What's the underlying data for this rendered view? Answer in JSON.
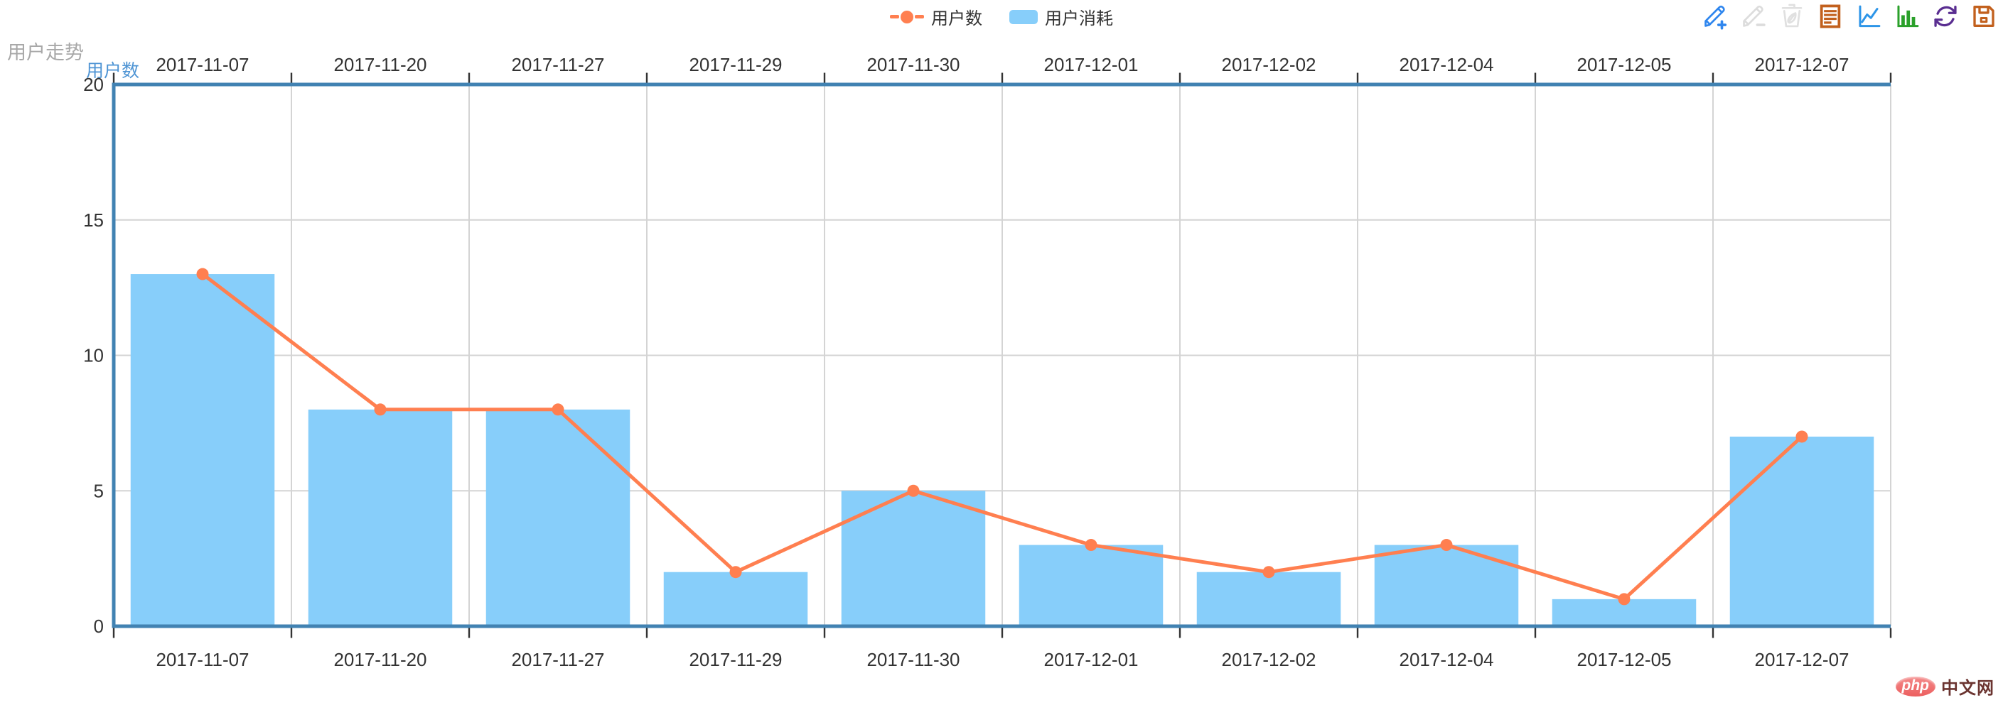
{
  "title": "用户走势",
  "y_axis_name": "用户数",
  "chart_data": {
    "type": "combo",
    "categories": [
      "2017-11-07",
      "2017-11-20",
      "2017-11-27",
      "2017-11-29",
      "2017-11-30",
      "2017-12-01",
      "2017-12-02",
      "2017-12-04",
      "2017-12-05",
      "2017-12-07"
    ],
    "series": [
      {
        "name": "用户数",
        "type": "line",
        "color": "#FF7F50",
        "values": [
          13,
          8,
          8,
          2,
          5,
          3,
          2,
          3,
          1,
          7
        ]
      },
      {
        "name": "用户消耗",
        "type": "bar",
        "color": "#87CEFA",
        "values": [
          13,
          8,
          8,
          2,
          5,
          3,
          2,
          3,
          1,
          7
        ]
      }
    ],
    "ylim": [
      0,
      20
    ],
    "yticks": [
      0,
      5,
      10,
      15,
      20
    ],
    "x_axis_position": "top-and-bottom",
    "grid": true,
    "legend_position": "top-center"
  },
  "colors": {
    "axis_line": "#4182B2",
    "grid_line": "#D4D4D4",
    "tick": "#333333",
    "axis_label": "#333333",
    "title": "#A8A8A8",
    "axis_name": "#4E94D4"
  },
  "toolbox": {
    "items": [
      {
        "name": "draw-add",
        "color": "#2F86EE"
      },
      {
        "name": "draw-edit",
        "color": "#DCDCDC"
      },
      {
        "name": "clear-trash",
        "color": "#E0E0E0"
      },
      {
        "name": "data-view",
        "color": "#C2601D"
      },
      {
        "name": "switch-line",
        "color": "#2D95E8"
      },
      {
        "name": "switch-bar",
        "color": "#2BA02B"
      },
      {
        "name": "restore",
        "color": "#5A2E91"
      },
      {
        "name": "save-image",
        "color": "#C2601D"
      }
    ]
  },
  "watermark": {
    "badge": "php",
    "text": "中文网",
    "badge_color": "#EC5F5F",
    "text_color": "#6B3430"
  }
}
